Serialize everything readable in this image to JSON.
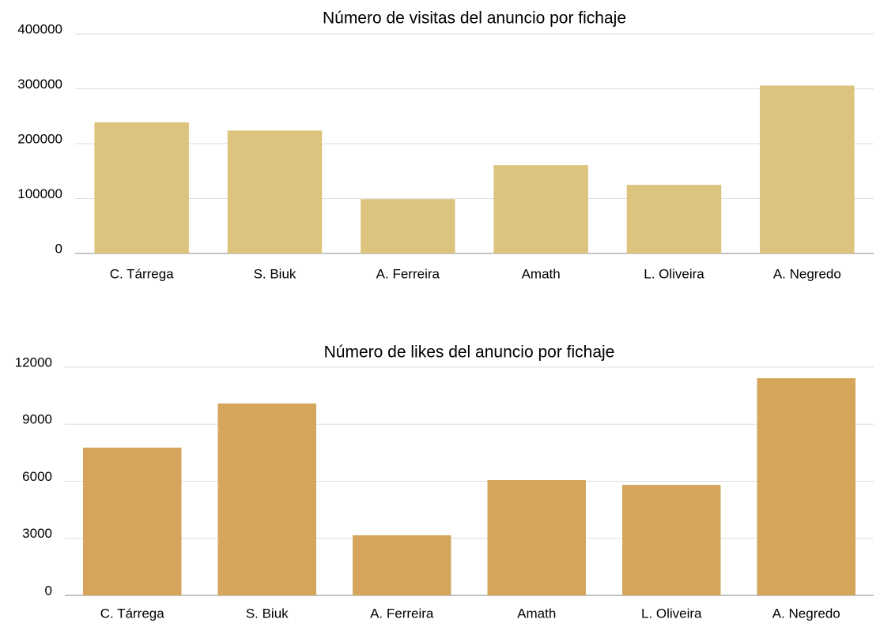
{
  "chart_data": [
    {
      "type": "bar",
      "title": "Número de visitas del anuncio por fichaje",
      "categories": [
        "C. Tárrega",
        "S. Biuk",
        "A. Ferreira",
        "Amath",
        "L. Oliveira",
        "A. Negredo"
      ],
      "values": [
        239000,
        224000,
        99000,
        161000,
        125000,
        306000
      ],
      "color": "#dcc47f",
      "ylim": [
        0,
        400000
      ],
      "yticks": [
        0,
        100000,
        200000,
        300000,
        400000
      ],
      "grid": true
    },
    {
      "type": "bar",
      "title": "Número de likes del anuncio por fichaje",
      "categories": [
        "C. Tárrega",
        "S. Biuk",
        "A. Ferreira",
        "Amath",
        "L. Oliveira",
        "A. Negredo"
      ],
      "values": [
        7770,
        10090,
        3160,
        6060,
        5810,
        11420
      ],
      "color": "#d4a55a",
      "ylim": [
        0,
        12000
      ],
      "yticks": [
        0,
        3000,
        6000,
        9000,
        12000
      ],
      "grid": true
    }
  ]
}
